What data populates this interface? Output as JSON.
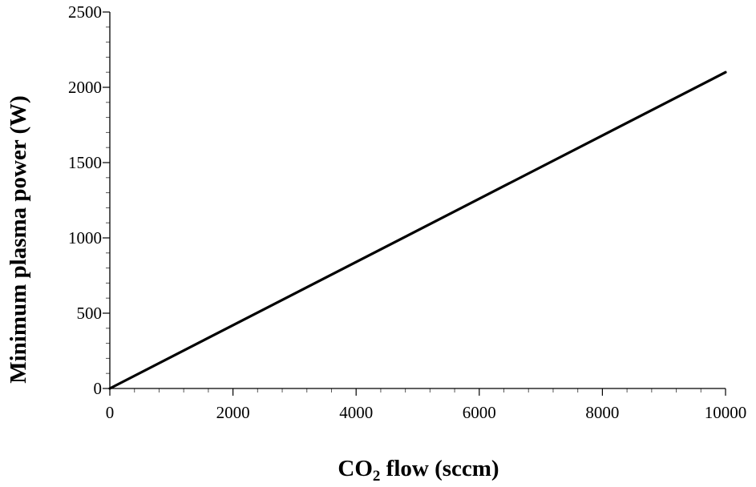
{
  "chart_data": {
    "type": "line",
    "title": "",
    "xlabel": "CO₂ flow (sccm)",
    "xlabel_parts": {
      "main": "CO",
      "sub": "2",
      "rest": " flow (sccm)"
    },
    "ylabel": "Minimum plasma power (W)",
    "xlim": [
      0,
      10000
    ],
    "ylim": [
      0,
      2500
    ],
    "x_ticks": [
      0,
      2000,
      4000,
      6000,
      8000,
      10000
    ],
    "y_ticks": [
      0,
      500,
      1000,
      1500,
      2000,
      2500
    ],
    "x_tick_labels": [
      "0",
      "2000",
      "4000",
      "6000",
      "8000",
      "10000"
    ],
    "y_tick_labels": [
      "0",
      "500",
      "1000",
      "1500",
      "2000",
      "2500"
    ],
    "x_minor_step": 400,
    "y_minor_step": 100,
    "grid": false,
    "legend": "none",
    "series": [
      {
        "x": [
          0,
          10000
        ],
        "y": [
          0,
          2100
        ],
        "color": "#000000"
      }
    ]
  }
}
